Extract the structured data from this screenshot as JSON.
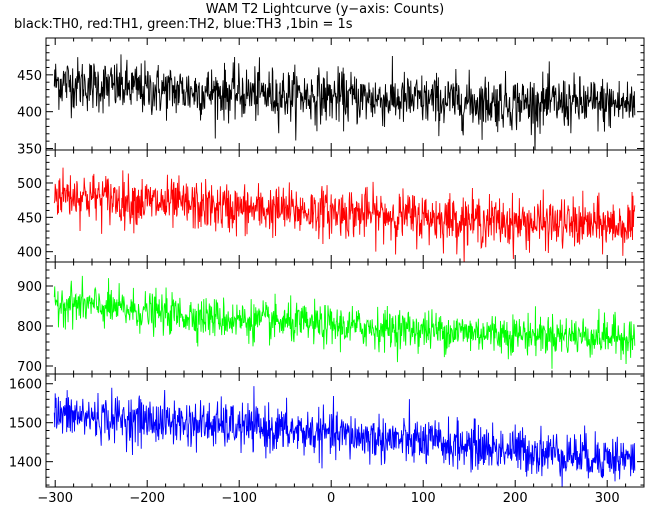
{
  "header": {
    "title": "WAM T2 Lightcurve (y−axis: Counts)",
    "subtitle": "black:TH0, red:TH1, green:TH2, blue:TH3 ,1bin = 1s"
  },
  "chart_data": {
    "type": "line",
    "title": "WAM T2 Lightcurve (y−axis: Counts)",
    "subtitle": "black:TH0, red:TH1, green:TH2, blue:TH3 ,1bin = 1s",
    "xlim": [
      -310,
      340
    ],
    "xticks": [
      -300,
      -200,
      -100,
      0,
      100,
      200,
      300
    ],
    "xtick_labels": [
      "−300",
      "−200",
      "−100",
      "0",
      "100",
      "200",
      "300"
    ],
    "grid": false,
    "panels": [
      {
        "name": "TH0",
        "color": "#000000",
        "ylim": [
          348,
          500
        ],
        "yticks": [
          350,
          400,
          450
        ],
        "trend": [
          [
            -300,
            440
          ],
          [
            -200,
            430
          ],
          [
            -100,
            425
          ],
          [
            0,
            420
          ],
          [
            100,
            415
          ],
          [
            200,
            412
          ],
          [
            330,
            410
          ]
        ],
        "noise_sigma": 18
      },
      {
        "name": "TH1",
        "color": "#ff0000",
        "ylim": [
          385,
          548
        ],
        "yticks": [
          400,
          450,
          500
        ],
        "trend": [
          [
            -300,
            485
          ],
          [
            -200,
            472
          ],
          [
            -100,
            462
          ],
          [
            0,
            458
          ],
          [
            100,
            450
          ],
          [
            200,
            442
          ],
          [
            330,
            438
          ]
        ],
        "noise_sigma": 18
      },
      {
        "name": "TH2",
        "color": "#00ff00",
        "ylim": [
          680,
          960
        ],
        "yticks": [
          700,
          800,
          900
        ],
        "trend": [
          [
            -300,
            860
          ],
          [
            -200,
            835
          ],
          [
            -100,
            815
          ],
          [
            0,
            800
          ],
          [
            100,
            790
          ],
          [
            200,
            780
          ],
          [
            330,
            772
          ]
        ],
        "noise_sigma": 25
      },
      {
        "name": "TH3",
        "color": "#0000ff",
        "ylim": [
          1335,
          1625
        ],
        "yticks": [
          1400,
          1500,
          1600
        ],
        "trend": [
          [
            -300,
            1520
          ],
          [
            -200,
            1505
          ],
          [
            -100,
            1490
          ],
          [
            0,
            1470
          ],
          [
            100,
            1450
          ],
          [
            200,
            1430
          ],
          [
            330,
            1405
          ]
        ],
        "noise_sigma": 30
      }
    ]
  }
}
